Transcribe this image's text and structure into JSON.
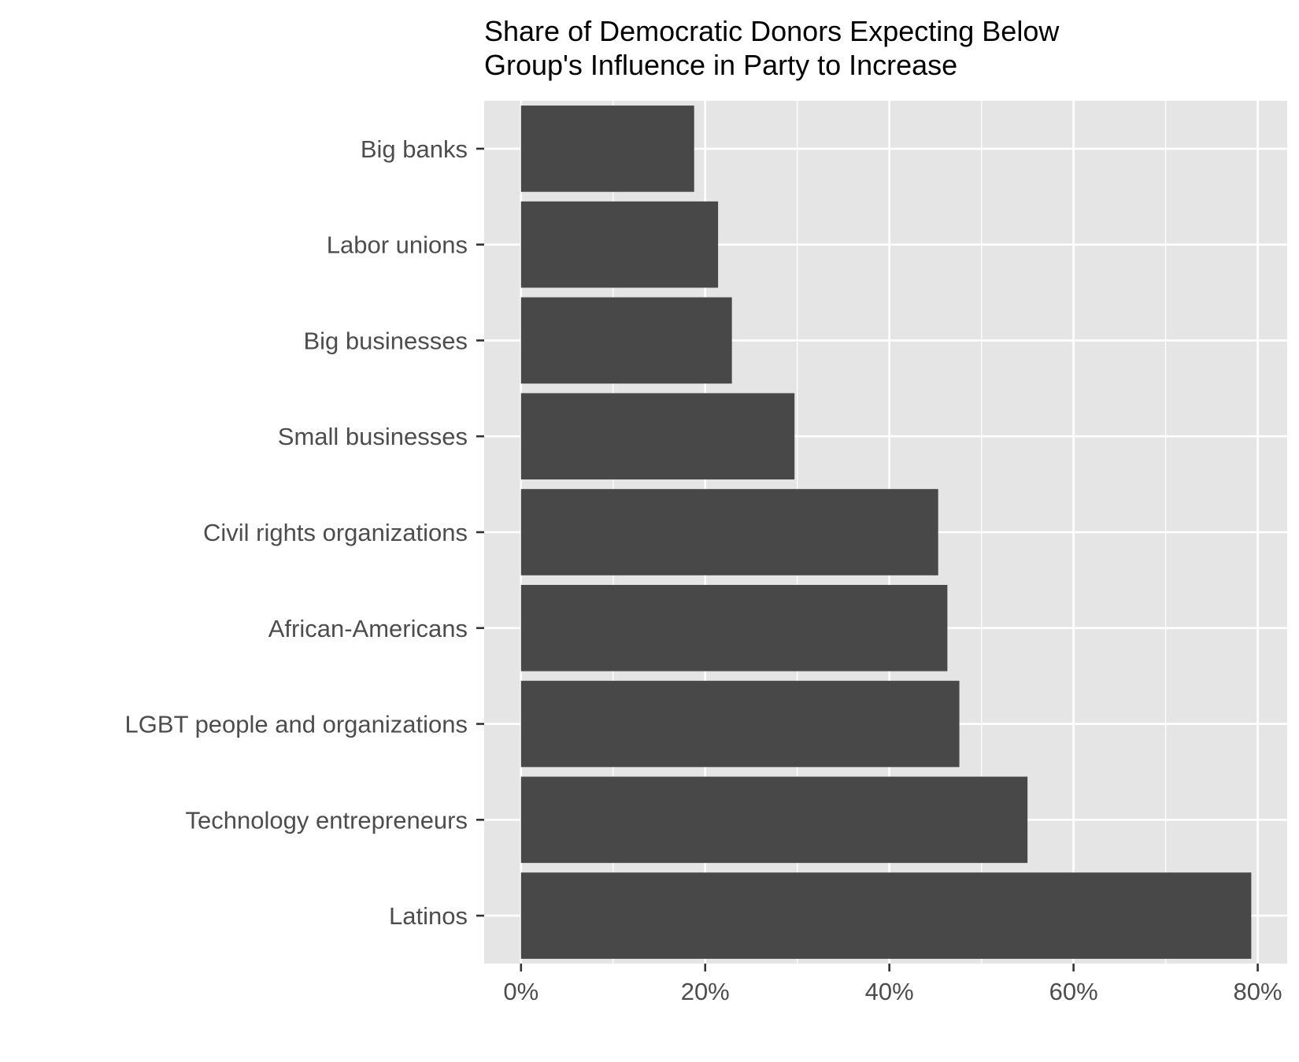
{
  "colors": {
    "panel_background": "#e5e5e5",
    "gridline": "#ffffff",
    "bar_fill": "#484848",
    "tick_text": "#4d4d4d",
    "title_text": "#000000"
  },
  "chart_data": {
    "type": "bar",
    "orientation": "horizontal",
    "title_lines": [
      "Share of Democratic Donors Expecting Below",
      "Group's Influence in Party to Increase"
    ],
    "categories": [
      "Big banks",
      "Labor unions",
      "Big businesses",
      "Small businesses",
      "Civil rights organizations",
      "African-Americans",
      "LGBT people and organizations",
      "Technology entrepreneurs",
      "Latinos"
    ],
    "values": [
      18.8,
      21.4,
      22.9,
      29.7,
      45.3,
      46.3,
      47.6,
      55.0,
      79.3
    ],
    "value_unit": "%",
    "xlim": [
      -4,
      83.2
    ],
    "x_ticks": [
      0,
      20,
      40,
      60,
      80
    ],
    "x_tick_labels": [
      "0%",
      "20%",
      "40%",
      "60%",
      "80%"
    ],
    "x_minor_ticks": [
      10,
      30,
      50,
      70
    ],
    "xlabel": "",
    "ylabel": "",
    "grid": true,
    "legend": "none"
  }
}
